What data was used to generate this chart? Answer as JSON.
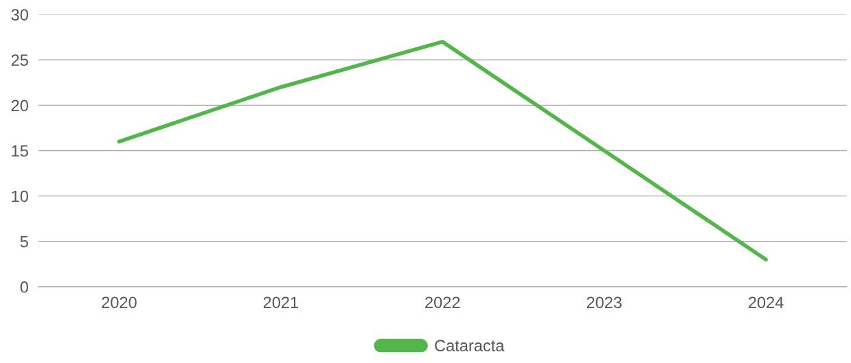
{
  "chart_data": {
    "type": "line",
    "categories": [
      "2020",
      "2021",
      "2022",
      "2023",
      "2024"
    ],
    "series": [
      {
        "name": "Cataracta",
        "color": "#52b64a",
        "values": [
          16,
          22,
          27,
          15,
          3
        ]
      }
    ],
    "ylim": [
      0,
      30
    ],
    "yticks": [
      0,
      5,
      10,
      15,
      20,
      25,
      30
    ],
    "grid": "y",
    "legend": "bottom",
    "marker": "none",
    "line_style": "solid"
  }
}
